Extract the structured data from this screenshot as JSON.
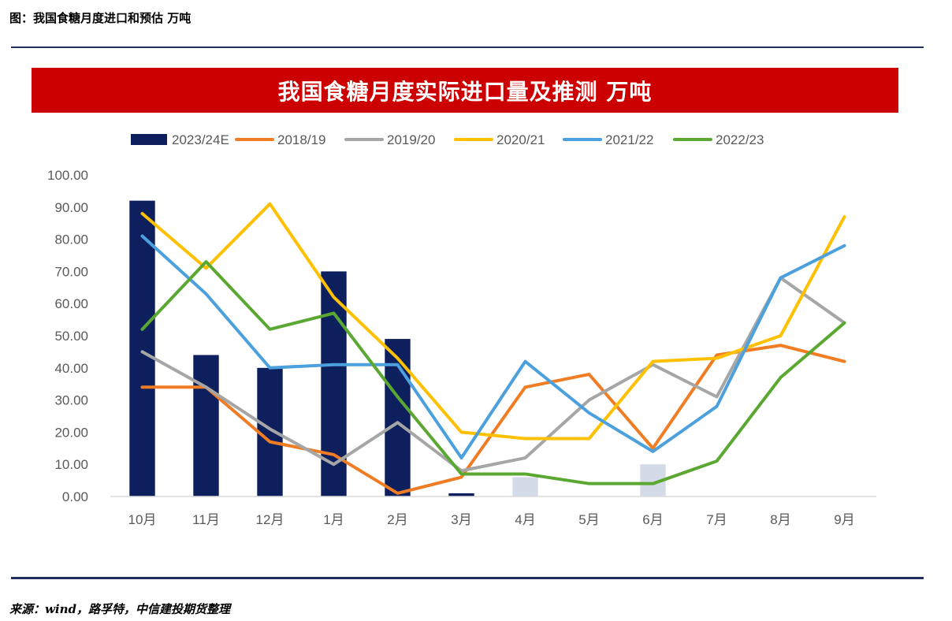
{
  "header": {
    "caption": "图：我国食糖月度进口和预估 万吨"
  },
  "footer": {
    "source": "来源：wind，路孚特，中信建投期货整理"
  },
  "chart_data": {
    "type": "bar",
    "title": "我国食糖月度实际进口量及推测 万吨",
    "xlabel": "",
    "ylabel": "",
    "categories": [
      "10月",
      "11月",
      "12月",
      "1月",
      "2月",
      "3月",
      "4月",
      "5月",
      "6月",
      "7月",
      "8月",
      "9月"
    ],
    "ylim": [
      0,
      100
    ],
    "yticks": [
      "0.00",
      "10.00",
      "20.00",
      "30.00",
      "40.00",
      "50.00",
      "60.00",
      "70.00",
      "80.00",
      "90.00",
      "100.00"
    ],
    "grid": false,
    "legend": "top",
    "bar_series": {
      "name": "2023/24E",
      "color": "#0d1f5c",
      "estimate_color": "#d4dbe8",
      "values": [
        92,
        44,
        40,
        70,
        49,
        1,
        6,
        null,
        10,
        null,
        null,
        null
      ],
      "estimated": [
        false,
        false,
        false,
        false,
        false,
        false,
        true,
        false,
        true,
        false,
        false,
        false
      ]
    },
    "line_series": [
      {
        "name": "2018/19",
        "color": "#f07c24",
        "values": [
          34,
          34,
          17,
          13,
          1,
          6,
          34,
          38,
          15,
          44,
          47,
          42
        ]
      },
      {
        "name": "2019/20",
        "color": "#a6a6a6",
        "values": [
          45,
          34,
          21,
          10,
          23,
          8,
          12,
          30,
          41,
          31,
          68,
          54
        ]
      },
      {
        "name": "2020/21",
        "color": "#ffc000",
        "values": [
          88,
          71,
          91,
          62,
          43,
          20,
          18,
          18,
          42,
          43,
          50,
          87
        ]
      },
      {
        "name": "2021/22",
        "color": "#4ba0dd",
        "values": [
          81,
          63,
          40,
          41,
          41,
          12,
          42,
          26,
          14,
          28,
          68,
          78
        ]
      },
      {
        "name": "2022/23",
        "color": "#5aa832",
        "values": [
          52,
          73,
          52,
          57,
          31,
          7,
          7,
          4,
          4,
          11,
          37,
          54
        ]
      }
    ]
  }
}
